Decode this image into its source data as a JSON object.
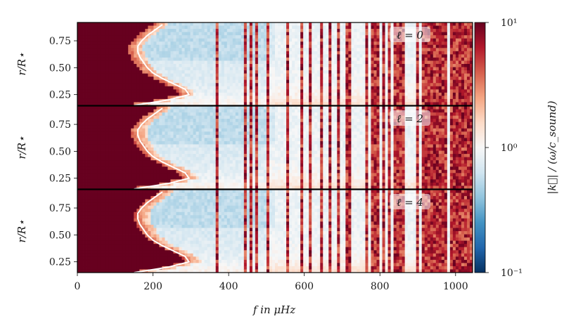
{
  "chart_data": {
    "type": "heatmap",
    "xlabel": "f in μHz",
    "ylabel": "r/R⋆",
    "xlim": [
      0,
      1045
    ],
    "x_ticks": [
      0,
      200,
      400,
      600,
      800,
      1000
    ],
    "colorbar": {
      "label": "|k⃗| / (ω/c_sound)",
      "scale": "log",
      "range": [
        0.1,
        10
      ],
      "ticks": [
        "10⁻¹",
        "10⁰",
        "10¹"
      ],
      "colormap": [
        "#053061",
        "#2166ac",
        "#4393c3",
        "#92c5de",
        "#d1e5f0",
        "#f7f7f7",
        "#fddbc7",
        "#f4a582",
        "#d6604d",
        "#b2182b",
        "#67001f"
      ]
    },
    "panels": [
      {
        "label": "ℓ = 0",
        "ylim": [
          0.15,
          0.92
        ],
        "y_ticks": [
          "0.25",
          "0.50",
          "0.75"
        ],
        "cutoff_curve": {
          "r": [
            0.15,
            0.2,
            0.25,
            0.3,
            0.35,
            0.4,
            0.45,
            0.5,
            0.55,
            0.6,
            0.65,
            0.7,
            0.75,
            0.8,
            0.85,
            0.9
          ],
          "f": [
            150,
            240,
            295,
            285,
            255,
            225,
            200,
            185,
            175,
            165,
            160,
            160,
            170,
            185,
            205,
            225
          ]
        }
      },
      {
        "label": "ℓ = 2",
        "ylim": [
          0.15,
          0.92
        ],
        "y_ticks": [
          "0.25",
          "0.50",
          "0.75"
        ],
        "cutoff_curve": {
          "r": [
            0.15,
            0.2,
            0.25,
            0.3,
            0.35,
            0.4,
            0.45,
            0.5,
            0.55,
            0.6,
            0.65,
            0.7,
            0.75,
            0.8,
            0.85,
            0.9
          ],
          "f": [
            150,
            240,
            295,
            285,
            255,
            225,
            200,
            185,
            175,
            165,
            160,
            160,
            170,
            185,
            205,
            225
          ]
        }
      },
      {
        "label": "ℓ = 4",
        "ylim": [
          0.15,
          0.92
        ],
        "y_ticks": [
          "0.25",
          "0.50",
          "0.75"
        ],
        "cutoff_curve": {
          "r": [
            0.15,
            0.2,
            0.25,
            0.3,
            0.35,
            0.4,
            0.45,
            0.5,
            0.55,
            0.6,
            0.65,
            0.7,
            0.75,
            0.8,
            0.85,
            0.9
          ],
          "f": [
            150,
            240,
            295,
            285,
            255,
            225,
            200,
            185,
            175,
            165,
            160,
            160,
            170,
            185,
            205,
            225
          ]
        }
      }
    ]
  }
}
